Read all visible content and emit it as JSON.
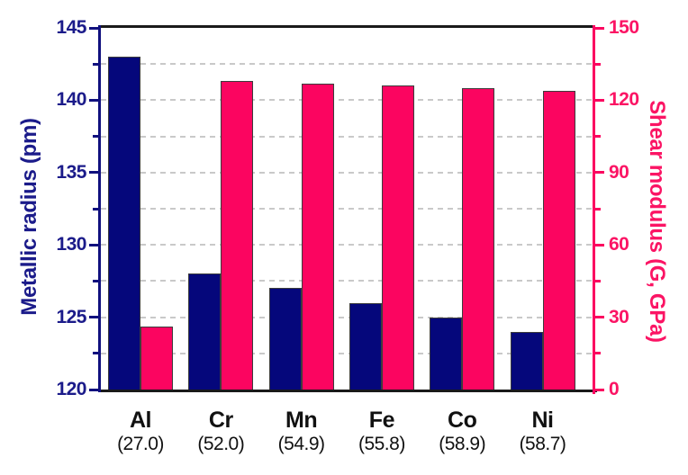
{
  "chart_data": {
    "type": "bar",
    "title": "",
    "legend_position": "none",
    "categories": [
      "Al",
      "Cr",
      "Mn",
      "Fe",
      "Co",
      "Ni"
    ],
    "category_sublabels": [
      "(27.0)",
      "(52.0)",
      "(54.9)",
      "(55.8)",
      "(58.9)",
      "(58.7)"
    ],
    "series": [
      {
        "name": "Metallic radius",
        "axis": "left",
        "color": "#05077b",
        "values": [
          143,
          128,
          127,
          126,
          125,
          124
        ]
      },
      {
        "name": "Shear modulus",
        "axis": "right",
        "color": "#fb0560",
        "values": [
          26,
          128,
          127,
          126,
          125,
          124
        ]
      }
    ],
    "left_axis": {
      "label": "Metallic radius (pm)",
      "min": 120,
      "max": 145,
      "major": 5,
      "minor": 2.5,
      "tick_labels": [
        "120",
        "125",
        "130",
        "135",
        "140",
        "145"
      ],
      "color": "#1b1b8a",
      "spine_color": "#10107e"
    },
    "right_axis": {
      "label": "Shear modulus (G, GPa)",
      "min": 0,
      "max": 150,
      "major": 30,
      "minor": 15,
      "tick_labels": [
        "0",
        "30",
        "60",
        "90",
        "120",
        "150"
      ],
      "color": "#fb1464",
      "spine_color": "#fb0560"
    },
    "grid": {
      "orientation": "horizontal",
      "style": "dashed",
      "color": "#c9c9c9",
      "at": "every minor tick"
    },
    "top_spine_color": "#1a1a1a",
    "bottom_spine_color": "#1a1a1a",
    "xlabel_color": "#111111"
  }
}
